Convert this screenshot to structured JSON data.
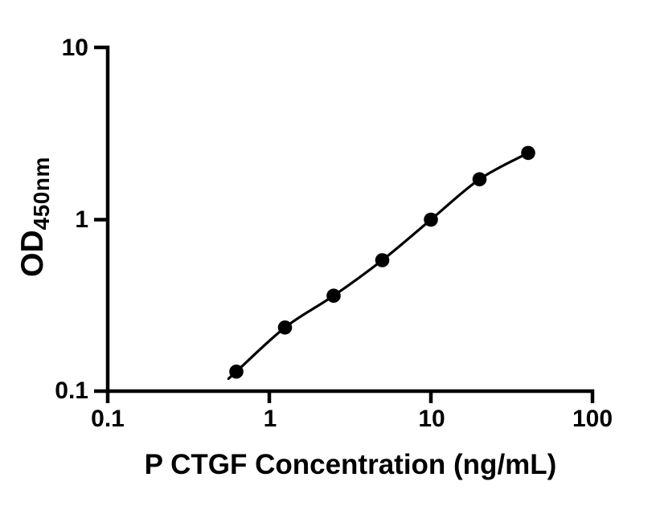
{
  "chart_data": {
    "type": "scatter",
    "title": "",
    "xlabel": "P CTGF Concentration (ng/mL)",
    "ylabel_main": "OD",
    "ylabel_sub": "450nm",
    "x": [
      0.625,
      1.25,
      2.5,
      5,
      10,
      20,
      40
    ],
    "y": [
      0.13,
      0.235,
      0.36,
      0.58,
      1.0,
      1.72,
      2.45
    ],
    "x_scale": "log",
    "y_scale": "log",
    "xlim": [
      0.1,
      100
    ],
    "ylim": [
      0.1,
      10
    ],
    "x_ticks": [
      "0.1",
      "1",
      "10",
      "100"
    ],
    "x_tick_values": [
      0.1,
      1,
      10,
      100
    ],
    "y_ticks": [
      "0.1",
      "1",
      "10"
    ],
    "y_tick_values": [
      0.1,
      1,
      10
    ],
    "grid": false,
    "legend": false,
    "fit_line": true,
    "marker_color": "#000000",
    "line_color": "#000000",
    "axis_color": "#000000",
    "background_color": "#ffffff"
  }
}
